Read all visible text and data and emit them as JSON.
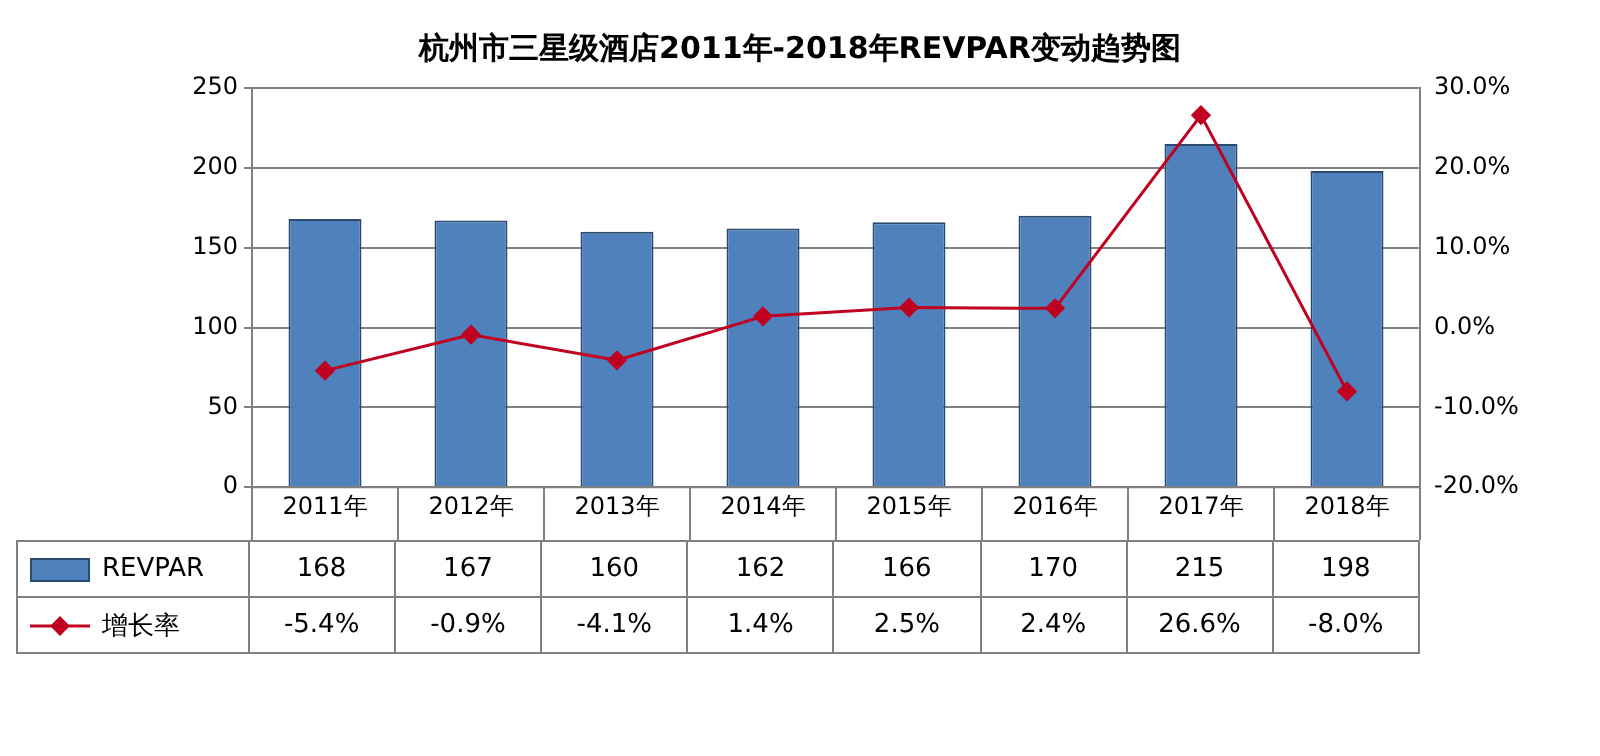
{
  "chart_data": {
    "type": "bar",
    "title": "杭州市三星级酒店2011年-2018年REVPAR变动趋势图",
    "categories": [
      "2011年",
      "2012年",
      "2013年",
      "2014年",
      "2015年",
      "2016年",
      "2017年",
      "2018年"
    ],
    "series": [
      {
        "name": "REVPAR",
        "color": "#4f81bd",
        "values": [
          168,
          167,
          160,
          162,
          166,
          170,
          215,
          198
        ],
        "value_labels": [
          "168",
          "167",
          "160",
          "162",
          "166",
          "170",
          "215",
          "198"
        ]
      },
      {
        "name": "增长率",
        "type": "line",
        "axis": "y2",
        "color": "#c00020",
        "marker": "diamond",
        "values": [
          -5.4,
          -0.9,
          -4.1,
          1.4,
          2.5,
          2.4,
          26.6,
          -8.0
        ],
        "value_labels": [
          "-5.4%",
          "-0.9%",
          "-4.1%",
          "1.4%",
          "2.5%",
          "2.4%",
          "26.6%",
          "-8.0%"
        ]
      }
    ],
    "ylim": [
      0,
      250
    ],
    "yticks": [
      0,
      50,
      100,
      150,
      200,
      250
    ],
    "y2lim": [
      -20,
      30
    ],
    "y2ticks": [
      {
        "value": -20,
        "label": "-20.0%"
      },
      {
        "value": -10,
        "label": "-10.0%"
      },
      {
        "value": 0,
        "label": "0.0%"
      },
      {
        "value": 10,
        "label": "10.0%"
      },
      {
        "value": 20,
        "label": "20.0%"
      },
      {
        "value": 30,
        "label": "30.0%"
      }
    ],
    "grid": "y",
    "legend": "bottom left"
  }
}
